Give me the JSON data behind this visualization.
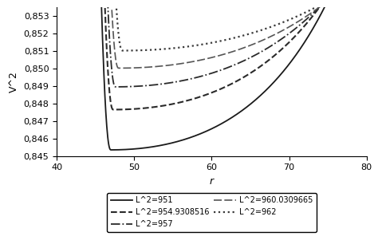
{
  "title": "",
  "xlabel": "r",
  "ylabel": "V^2",
  "xlim": [
    40,
    80
  ],
  "ylim": [
    0.845,
    0.8535
  ],
  "yticks": [
    0.845,
    0.846,
    0.847,
    0.848,
    0.849,
    0.85,
    0.851,
    0.852,
    0.853
  ],
  "xticks": [
    40,
    50,
    60,
    70,
    80
  ],
  "r_start": 43.8,
  "r_end": 80,
  "n_points": 600,
  "M": 1.0,
  "curves": [
    {
      "L2": 12.0,
      "L2_label": "951",
      "label": "L^2=951",
      "linestyle": "solid",
      "color": "#222222",
      "linewidth": 1.3,
      "r_clip_start": 43.8
    },
    {
      "L2": 12.25,
      "L2_label": "954.9308516",
      "label": "L^2=954.9308516",
      "linestyle": "dashed",
      "color": "#333333",
      "linewidth": 1.4,
      "r_clip_start": 44.0
    },
    {
      "L2": 12.4,
      "L2_label": "957",
      "label": "L^2=957",
      "linestyle": "dashdot",
      "color": "#333333",
      "linewidth": 1.3,
      "r_clip_start": 44.1
    },
    {
      "L2": 12.6,
      "L2_label": "960.0309665",
      "label": "L^2=960.0309665",
      "linestyle": "dashed_long",
      "color": "#555555",
      "linewidth": 1.2,
      "r_clip_start": 44.2
    },
    {
      "L2": 12.75,
      "L2_label": "962",
      "label": "L^2=962",
      "linestyle": "dotted",
      "color": "#444444",
      "linewidth": 1.6,
      "r_clip_start": 44.3
    }
  ],
  "background_color": "#ffffff",
  "figsize": [
    4.74,
    3.01
  ],
  "dpi": 100
}
